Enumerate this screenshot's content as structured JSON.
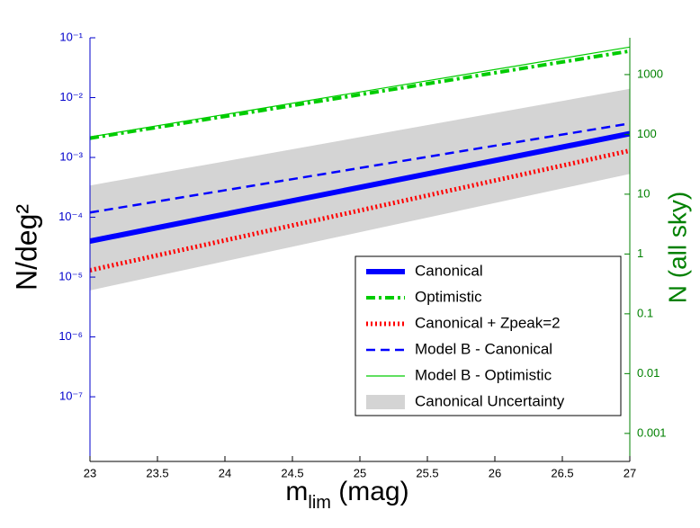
{
  "chart_data": {
    "type": "line",
    "xlabel": [
      "m",
      "lim",
      " (mag)"
    ],
    "ylabel": "N/deg²",
    "y2label": "N (all sky)",
    "xlim": [
      23,
      27
    ],
    "xticks": [
      23,
      23.5,
      24,
      24.5,
      25,
      25.5,
      26,
      26.5,
      27
    ],
    "ylim": [
      8.3e-09,
      0.1
    ],
    "yscale": "log",
    "yticks": [
      {
        "value": 1e-07,
        "label": "10⁻⁷"
      },
      {
        "value": 1e-06,
        "label": "10⁻⁶"
      },
      {
        "value": 1e-05,
        "label": "10⁻⁵"
      },
      {
        "value": 0.0001,
        "label": "10⁻⁴"
      },
      {
        "value": 0.001,
        "label": "10⁻³"
      },
      {
        "value": 0.01,
        "label": "10⁻²"
      },
      {
        "value": 0.1,
        "label": "10⁻¹"
      }
    ],
    "y2lim": [
      0.00034,
      4125
    ],
    "y2ticks": [
      0.001,
      0.01,
      0.1,
      1,
      10,
      100,
      1000
    ],
    "ycolor": "#0000cc",
    "y2color": "#008000",
    "legend": "lower right",
    "series": [
      {
        "name": "Canonical",
        "color": "#0000ff",
        "width": 6,
        "dash": "",
        "x": [
          23,
          27
        ],
        "values": [
          4e-05,
          0.0025
        ]
      },
      {
        "name": "Optimistic",
        "color": "#00cc00",
        "width": 4,
        "dash": "10 4 3 4",
        "x": [
          23,
          27
        ],
        "values": [
          0.0021,
          0.06
        ]
      },
      {
        "name": "Canonical + Zpeak=2",
        "color": "#ff0000",
        "width": 5,
        "dash": "2 3",
        "x": [
          23,
          27
        ],
        "values": [
          1.3e-05,
          0.0013
        ]
      },
      {
        "name": "Model B - Canonical",
        "color": "#0000ff",
        "width": 2.5,
        "dash": "10 6",
        "x": [
          23,
          27
        ],
        "values": [
          0.00012,
          0.0037
        ]
      },
      {
        "name": "Model B - Optimistic",
        "color": "#00cc00",
        "width": 1.2,
        "dash": "",
        "x": [
          23,
          27
        ],
        "values": [
          0.0022,
          0.07
        ]
      }
    ],
    "band": {
      "name": "Canonical Uncertainty",
      "color": "#d4d4d4",
      "x": [
        23,
        27
      ],
      "lower": [
        6e-06,
        0.00053
      ],
      "upper": [
        0.00034,
        0.014
      ]
    }
  }
}
